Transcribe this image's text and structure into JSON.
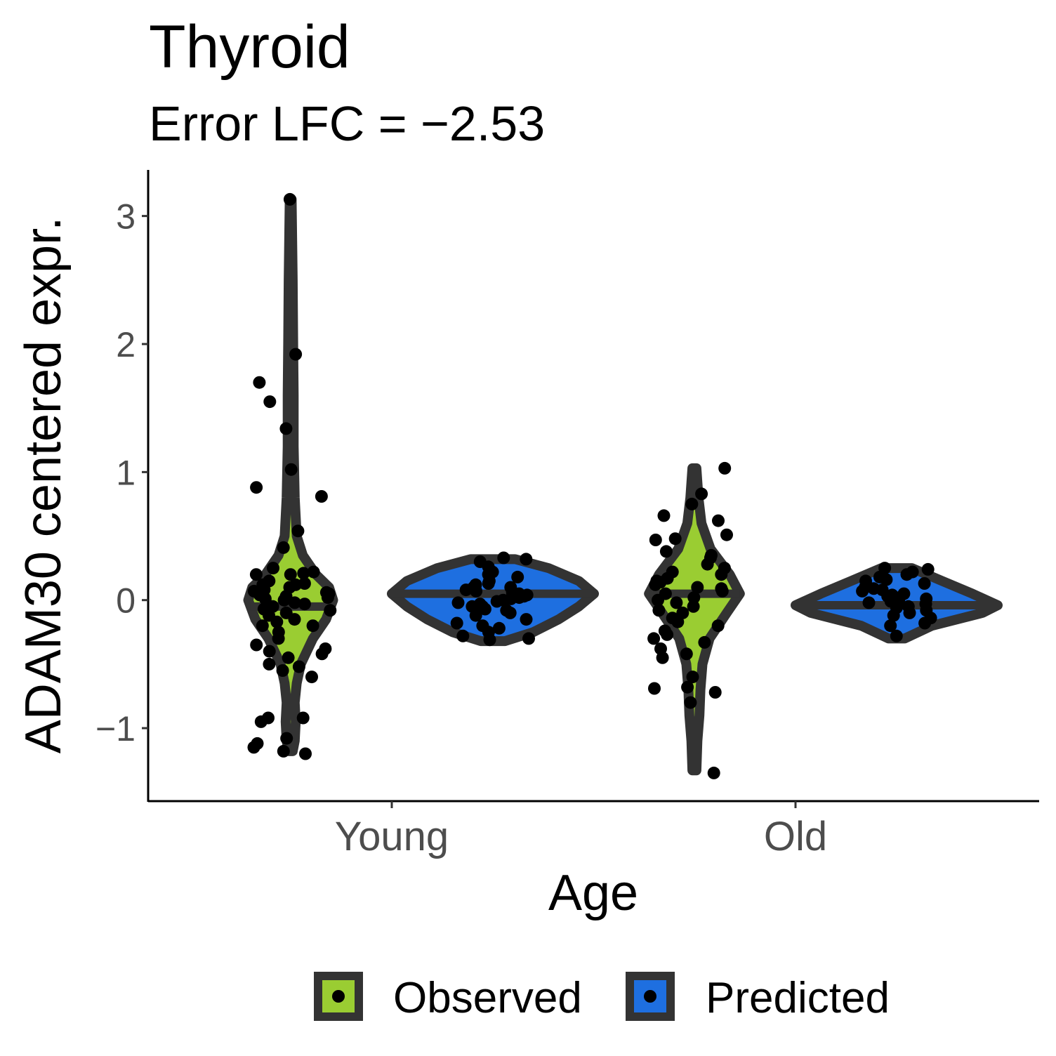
{
  "chart_data": {
    "type": "violin",
    "title": "Thyroid",
    "subtitle": "Error LFC = −2.53",
    "xlabel": "Age",
    "ylabel": "ADAM30 centered expr.",
    "categories": [
      "Young",
      "Old"
    ],
    "ylim": [
      -1.57,
      3.36
    ],
    "yticks": [
      -1,
      0,
      1,
      2,
      3
    ],
    "ytick_labels": [
      "−1",
      "0",
      "1",
      "2",
      "3"
    ],
    "grid": false,
    "legend_position": "bottom",
    "series": [
      {
        "name": "Observed",
        "color": "#9acd32"
      },
      {
        "name": "Predicted",
        "color": "#1e6fe0"
      }
    ],
    "violins": [
      {
        "category": "Young",
        "series": "Observed",
        "median": -0.05,
        "profile": [
          [
            -1.18,
            0.02
          ],
          [
            -1.1,
            0.04
          ],
          [
            -0.95,
            0.05
          ],
          [
            -0.8,
            0.04
          ],
          [
            -0.65,
            0.06
          ],
          [
            -0.5,
            0.1
          ],
          [
            -0.3,
            0.22
          ],
          [
            -0.15,
            0.35
          ],
          [
            0,
            0.42
          ],
          [
            0.1,
            0.38
          ],
          [
            0.2,
            0.25
          ],
          [
            0.35,
            0.12
          ],
          [
            0.5,
            0.06
          ],
          [
            0.8,
            0.04
          ],
          [
            1.2,
            0.03
          ],
          [
            1.6,
            0.03
          ],
          [
            2.0,
            0.025
          ],
          [
            2.5,
            0.02
          ],
          [
            3.13,
            0.01
          ]
        ]
      },
      {
        "category": "Young",
        "series": "Predicted",
        "median": 0.05,
        "profile": [
          [
            -0.32,
            0.12
          ],
          [
            -0.25,
            0.4
          ],
          [
            -0.15,
            0.65
          ],
          [
            -0.05,
            0.85
          ],
          [
            0.05,
            1.0
          ],
          [
            0.15,
            0.85
          ],
          [
            0.25,
            0.55
          ],
          [
            0.32,
            0.22
          ]
        ]
      },
      {
        "category": "Old",
        "series": "Observed",
        "median": 0.05,
        "profile": [
          [
            -1.33,
            0.02
          ],
          [
            -1.1,
            0.03
          ],
          [
            -0.9,
            0.05
          ],
          [
            -0.7,
            0.06
          ],
          [
            -0.5,
            0.08
          ],
          [
            -0.3,
            0.15
          ],
          [
            -0.1,
            0.32
          ],
          [
            0.05,
            0.45
          ],
          [
            0.2,
            0.35
          ],
          [
            0.4,
            0.16
          ],
          [
            0.6,
            0.07
          ],
          [
            0.8,
            0.04
          ],
          [
            1.03,
            0.02
          ]
        ]
      },
      {
        "category": "Old",
        "series": "Predicted",
        "median": -0.04,
        "profile": [
          [
            -0.3,
            0.08
          ],
          [
            -0.2,
            0.35
          ],
          [
            -0.1,
            0.85
          ],
          [
            -0.04,
            1.0
          ],
          [
            0.05,
            0.75
          ],
          [
            0.15,
            0.45
          ],
          [
            0.25,
            0.15
          ]
        ]
      }
    ],
    "points": [
      {
        "category": "Young",
        "series": "Observed",
        "values": [
          3.13,
          1.92,
          1.7,
          1.55,
          1.34,
          1.02,
          0.88,
          0.81,
          0.54,
          0.41,
          0.25,
          0.22,
          0.21,
          0.2,
          0.2,
          0.15,
          0.13,
          0.12,
          0.12,
          0.1,
          0.08,
          0.07,
          0.06,
          0.05,
          0.04,
          0.03,
          0.02,
          0.01,
          0.0,
          -0.02,
          -0.03,
          -0.05,
          -0.07,
          -0.08,
          -0.1,
          -0.12,
          -0.15,
          -0.17,
          -0.2,
          -0.2,
          -0.25,
          -0.3,
          -0.35,
          -0.38,
          -0.4,
          -0.42,
          -0.45,
          -0.5,
          -0.52,
          -0.55,
          -0.6,
          -0.92,
          -0.95,
          -0.92,
          -1.08,
          -1.12,
          -1.15,
          -1.18,
          -1.2
        ]
      },
      {
        "category": "Young",
        "series": "Predicted",
        "values": [
          0.33,
          0.32,
          0.3,
          0.26,
          0.22,
          0.2,
          0.18,
          0.15,
          0.13,
          0.12,
          0.1,
          0.1,
          0.08,
          0.07,
          0.06,
          0.05,
          0.04,
          0.03,
          0.02,
          0.01,
          0.0,
          -0.01,
          -0.02,
          -0.03,
          -0.05,
          -0.05,
          -0.07,
          -0.08,
          -0.1,
          -0.12,
          -0.15,
          -0.18,
          -0.2,
          -0.22,
          -0.25,
          -0.28,
          -0.3,
          -0.31
        ]
      },
      {
        "category": "Old",
        "series": "Observed",
        "values": [
          1.03,
          0.83,
          0.75,
          0.66,
          0.62,
          0.51,
          0.48,
          0.47,
          0.38,
          0.35,
          0.33,
          0.28,
          0.25,
          0.22,
          0.2,
          0.17,
          0.15,
          0.14,
          0.12,
          0.1,
          0.09,
          0.07,
          0.05,
          0.02,
          0.0,
          -0.02,
          -0.05,
          -0.08,
          -0.1,
          -0.14,
          -0.17,
          -0.2,
          -0.24,
          -0.27,
          -0.3,
          -0.33,
          -0.38,
          -0.42,
          -0.45,
          -0.6,
          -0.68,
          -0.69,
          -0.72,
          -0.8,
          -1.35
        ]
      },
      {
        "category": "Old",
        "series": "Predicted",
        "values": [
          0.25,
          0.24,
          0.22,
          0.2,
          0.18,
          0.16,
          0.15,
          0.13,
          0.12,
          0.1,
          0.09,
          0.08,
          0.07,
          0.05,
          0.04,
          0.03,
          0.02,
          0.01,
          0.0,
          -0.01,
          -0.02,
          -0.03,
          -0.05,
          -0.06,
          -0.08,
          -0.1,
          -0.12,
          -0.14,
          -0.18,
          -0.2,
          -0.28
        ]
      }
    ]
  }
}
